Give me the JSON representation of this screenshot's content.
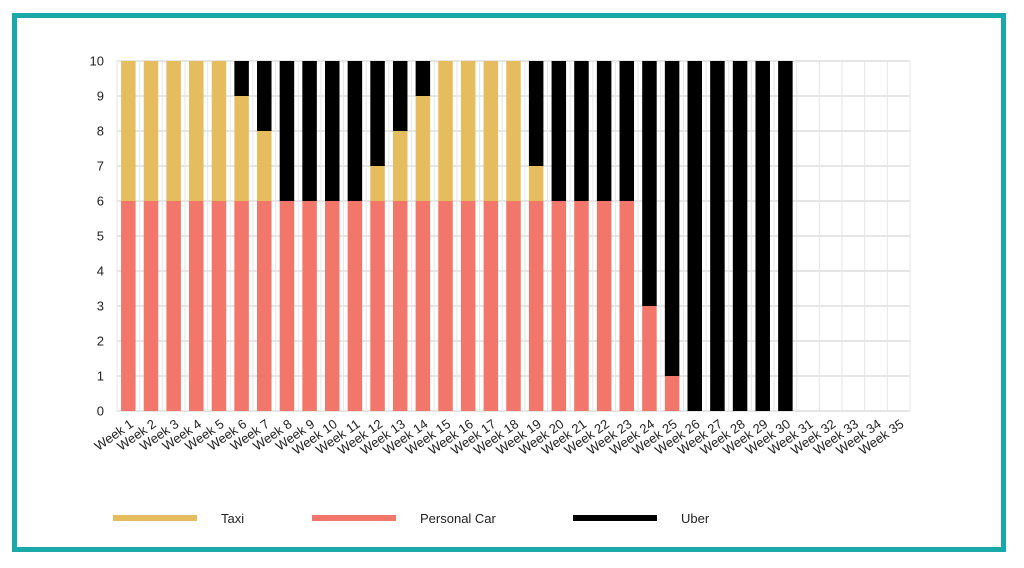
{
  "colors": {
    "frame": "#1aa9a9",
    "taxi": "#e6bd5e",
    "personal_car": "#f2766a",
    "uber": "#000000",
    "grid": "#cccccc"
  },
  "chart_data": {
    "type": "bar",
    "stacked": true,
    "title": "",
    "xlabel": "",
    "ylabel": "",
    "ylim": [
      0,
      10
    ],
    "yticks": [
      0,
      1,
      2,
      3,
      4,
      5,
      6,
      7,
      8,
      9,
      10
    ],
    "grid": true,
    "legend_position": "bottom",
    "categories": [
      "Week 1",
      "Week 2",
      "Week 3",
      "Week 4",
      "Week 5",
      "Week 6",
      "Week 7",
      "Week 8",
      "Week 9",
      "Week 10",
      "Week 11",
      "Week 12",
      "Week 13",
      "Week 14",
      "Week 15",
      "Week 16",
      "Week 17",
      "Week 18",
      "Week 19",
      "Week 20",
      "Week 21",
      "Week 22",
      "Week 23",
      "Week 24",
      "Week 25",
      "Week 26",
      "Week 27",
      "Week 28",
      "Week 29",
      "Week 30",
      "Week 31",
      "Week 32",
      "Week 33",
      "Week 34",
      "Week 35"
    ],
    "series": [
      {
        "name": "Personal Car",
        "color": "#f2766a",
        "values": [
          6,
          6,
          6,
          6,
          6,
          6,
          6,
          6,
          6,
          6,
          6,
          6,
          6,
          6,
          6,
          6,
          6,
          6,
          6,
          6,
          6,
          6,
          6,
          3,
          1,
          0,
          0,
          0,
          0,
          0,
          0,
          0,
          0,
          0,
          0
        ]
      },
      {
        "name": "Taxi",
        "color": "#e6bd5e",
        "values": [
          4,
          4,
          4,
          4,
          4,
          3,
          2,
          0,
          0,
          0,
          0,
          1,
          2,
          3,
          4,
          4,
          4,
          4,
          1,
          0,
          0,
          0,
          0,
          0,
          0,
          0,
          0,
          0,
          0,
          0,
          0,
          0,
          0,
          0,
          0
        ]
      },
      {
        "name": "Uber",
        "color": "#000000",
        "values": [
          0,
          0,
          0,
          0,
          0,
          1,
          2,
          4,
          4,
          4,
          4,
          3,
          2,
          1,
          0,
          0,
          0,
          0,
          3,
          4,
          4,
          4,
          4,
          7,
          9,
          10,
          10,
          10,
          10,
          10,
          0,
          0,
          0,
          0,
          0
        ]
      }
    ],
    "legend": [
      {
        "name": "Taxi",
        "color": "#e6bd5e"
      },
      {
        "name": "Personal Car",
        "color": "#f2766a"
      },
      {
        "name": "Uber",
        "color": "#000000"
      }
    ]
  }
}
